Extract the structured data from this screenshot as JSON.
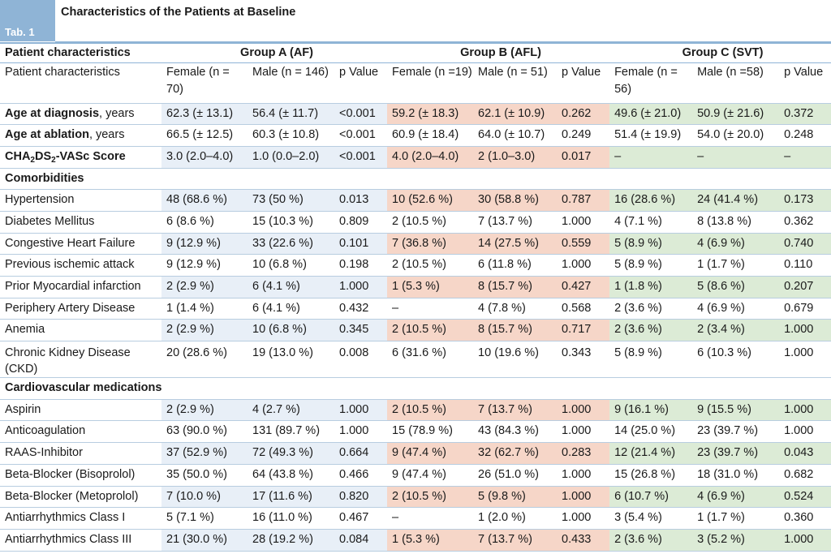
{
  "tab_label": "Tab. 1",
  "title": "Characteristics of the Patients at Baseline",
  "header": {
    "patient_characteristics": "Patient characteristics",
    "group_a": "Group A (AF)",
    "group_b": "Group B (AFL)",
    "group_c": "Group C (SVT)"
  },
  "subheader": {
    "label": "Patient characteristics",
    "a_female": "Female (n = 70)",
    "a_male": "Male (n = 146)",
    "a_p": "p Value",
    "b_female": "Female (n =19)",
    "b_male": "Male (n = 51)",
    "b_p": "p Value",
    "c_female": "Female (n = 56)",
    "c_male": "Male (n =58)",
    "c_p": "p Value"
  },
  "rows": {
    "age_dx": {
      "label_bold": "Age at diagnosis",
      "label_rest": ", years",
      "cells": [
        "62.3 (± 13.1)",
        "56.4 (± 11.7)",
        "<0.001",
        "59.2 (± 18.3)",
        "62.1 (± 10.9)",
        "0.262",
        "49.6 (± 21.0)",
        "50.9 (± 21.6)",
        "0.372"
      ]
    },
    "age_abl": {
      "label_bold": "Age at ablation",
      "label_rest": ", years",
      "cells": [
        "66.5 (± 12.5)",
        "60.3 (± 10.8)",
        "<0.001",
        "60.9 (± 18.4)",
        "64.0 (± 10.7)",
        "0.249",
        "51.4 (± 19.9)",
        "54.0 (± 20.0)",
        "0.248"
      ]
    },
    "cha2ds2": {
      "p1": "CHA",
      "s1": "2",
      "p2": "DS",
      "s2": "2",
      "p3": "-VASc Score",
      "cells": [
        "3.0 (2.0–4.0)",
        "1.0 (0.0–2.0)",
        "<0.001",
        "4.0 (2.0–4.0)",
        "2 (1.0–3.0)",
        "0.017",
        "–",
        "–",
        "–"
      ]
    },
    "comorbidities": {
      "label": "Comorbidities"
    },
    "hypertension": {
      "label": "Hypertension",
      "cells": [
        "48 (68.6 %)",
        "73 (50 %)",
        "0.013",
        "10 (52.6 %)",
        "30 (58.8 %)",
        "0.787",
        "16 (28.6 %)",
        "24 (41.4 %)",
        "0.173"
      ]
    },
    "diabetes": {
      "label": "Diabetes Mellitus",
      "cells": [
        "6 (8.6 %)",
        "15 (10.3 %)",
        "0.809",
        "2 (10.5 %)",
        "7 (13.7 %)",
        "1.000",
        "4 (7.1 %)",
        "8 (13.8 %)",
        "0.362"
      ]
    },
    "chf": {
      "label": "Congestive Heart Failure",
      "cells": [
        "9 (12.9 %)",
        "33 (22.6 %)",
        "0.101",
        "7 (36.8 %)",
        "14 (27.5 %)",
        "0.559",
        "5 (8.9 %)",
        "4 (6.9 %)",
        "0.740"
      ]
    },
    "ischemic": {
      "label": "Previous ischemic attack",
      "cells": [
        "9 (12.9 %)",
        "10 (6.8 %)",
        "0.198",
        "2 (10.5 %)",
        "6 (11.8 %)",
        "1.000",
        "5 (8.9 %)",
        "1 (1.7 %)",
        "0.110"
      ]
    },
    "mi": {
      "label": "Prior Myocardial infarction",
      "cells": [
        "2 (2.9 %)",
        "6 (4.1 %)",
        "1.000",
        "1 (5.3 %)",
        "8 (15.7 %)",
        "0.427",
        "1 (1.8 %)",
        "5 (8.6 %)",
        "0.207"
      ]
    },
    "pad": {
      "label": "Periphery Artery Disease",
      "cells": [
        "1 (1.4 %)",
        "6 (4.1 %)",
        "0.432",
        "–",
        "4 (7.8 %)",
        "0.568",
        "2 (3.6 %)",
        "4 (6.9 %)",
        "0.679"
      ]
    },
    "anemia": {
      "label": "Anemia",
      "cells": [
        "2 (2.9 %)",
        "10 (6.8 %)",
        "0.345",
        "2 (10.5 %)",
        "8 (15.7 %)",
        "0.717",
        "2 (3.6 %)",
        "2 (3.4 %)",
        "1.000"
      ]
    },
    "ckd": {
      "label1": "Chronic Kidney Disease",
      "label2": "(CKD)",
      "cells": [
        "20 (28.6 %)",
        "19 (13.0 %)",
        "0.008",
        "6 (31.6 %)",
        "10 (19.6 %)",
        "0.343",
        "5 (8.9 %)",
        "6 (10.3 %)",
        "1.000"
      ]
    },
    "cv_meds": {
      "label": "Cardiovascular medications"
    },
    "aspirin": {
      "label": "Aspirin",
      "cells": [
        "2 (2.9 %)",
        "4 (2.7 %)",
        "1.000",
        "2 (10.5 %)",
        "7 (13.7 %)",
        "1.000",
        "9 (16.1 %)",
        "9 (15.5 %)",
        "1.000"
      ]
    },
    "anticoag": {
      "label": "Anticoagulation",
      "cells": [
        "63 (90.0 %)",
        "131 (89.7 %)",
        "1.000",
        "15 (78.9 %)",
        "43 (84.3 %)",
        "1.000",
        "14 (25.0 %)",
        "23 (39.7 %)",
        "1.000"
      ]
    },
    "raas": {
      "label": "RAAS-Inhibitor",
      "cells": [
        "37 (52.9 %)",
        "72 (49.3 %)",
        "0.664",
        "9 (47.4 %)",
        "32 (62.7 %)",
        "0.283",
        "12 (21.4 %)",
        "23 (39.7 %)",
        "0.043"
      ]
    },
    "bb_biso": {
      "label": "Beta-Blocker (Bisoprolol)",
      "cells": [
        "35 (50.0 %)",
        "64 (43.8 %)",
        "0.466",
        "9 (47.4 %)",
        "26 (51.0 %)",
        "1.000",
        "15 (26.8 %)",
        "18 (31.0 %)",
        "0.682"
      ]
    },
    "bb_meto": {
      "label": "Beta-Blocker (Metoprolol)",
      "cells": [
        "7 (10.0 %)",
        "17 (11.6 %)",
        "0.820",
        "2 (10.5 %)",
        "5 (9.8 %)",
        "1.000",
        "6 (10.7 %)",
        "4 (6.9 %)",
        "0.524"
      ]
    },
    "aa1": {
      "label": "Antiarrhythmics Class I",
      "cells": [
        "5 (7.1 %)",
        "16 (11.0 %)",
        "0.467",
        "–",
        "1 (2.0 %)",
        "1.000",
        "3 (5.4 %)",
        "1 (1.7 %)",
        "0.360"
      ]
    },
    "aa3": {
      "label": "Antiarrhythmics Class III",
      "cells": [
        "21 (30.0 %)",
        "28 (19.2 %)",
        "0.084",
        "1 (5.3 %)",
        "7 (13.7 %)",
        "0.433",
        "2 (3.6 %)",
        "3 (5.2 %)",
        "1.000"
      ]
    }
  },
  "colors": {
    "tab_blue": "#8fb4d6",
    "group_a_shade": "#e8eff7",
    "group_b_shade": "#f6d6c8",
    "group_c_shade": "#dcebd6"
  }
}
